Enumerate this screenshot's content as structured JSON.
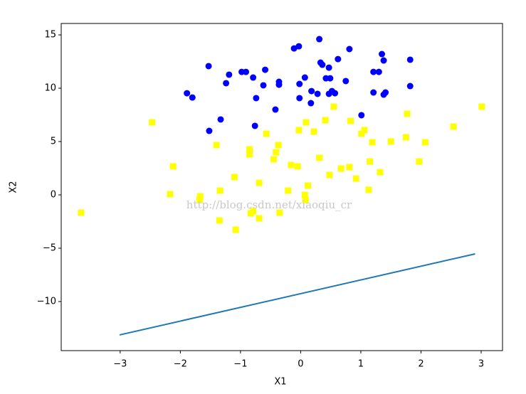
{
  "chart_data": {
    "type": "scatter",
    "xlabel": "X1",
    "ylabel": "X2",
    "annotation": "http://blog.csdn.net/xiaoqiu_cr",
    "xlim": [
      -3.98,
      3.355
    ],
    "ylim": [
      -14.6,
      16.07
    ],
    "xticks": [
      {
        "value": -3,
        "label": "−3"
      },
      {
        "value": -2,
        "label": "−2"
      },
      {
        "value": -1,
        "label": "−1"
      },
      0,
      1,
      2,
      3
    ],
    "yticks": [
      {
        "value": -10,
        "label": "−10"
      },
      {
        "value": -5,
        "label": "−5"
      },
      0,
      5,
      10,
      15
    ],
    "series": [
      {
        "kind": "scatter",
        "marker": "circle",
        "color": "#0000ff",
        "x": [
          -1.53,
          -1.19,
          -1.24,
          -0.98,
          -0.91,
          -0.79,
          -0.59,
          -0.62,
          -0.74,
          -0.36,
          -0.36,
          -0.42,
          -1.89,
          -1.8,
          -1.33,
          -1.52,
          -0.76,
          -0.11,
          -0.03,
          0.31,
          -0.02,
          0.07,
          -0.02,
          0.18,
          0.28,
          0.17,
          0.33,
          0.36,
          0.47,
          0.42,
          0.49,
          0.47,
          0.52,
          0.57,
          0.62,
          0.81,
          0.75,
          1.01,
          1.21,
          1.3,
          1.21,
          1.35,
          1.38,
          1.38,
          1.41,
          1.82,
          1.82
        ],
        "values": [
          12.07,
          11.27,
          10.47,
          11.53,
          11.53,
          11.0,
          11.73,
          10.27,
          9.07,
          10.6,
          10.33,
          8.0,
          9.53,
          9.13,
          7.07,
          6.0,
          6.47,
          13.73,
          13.93,
          14.6,
          10.4,
          11.0,
          9.07,
          9.73,
          9.47,
          8.6,
          12.4,
          12.2,
          11.93,
          10.93,
          10.93,
          9.47,
          9.73,
          9.53,
          12.73,
          13.67,
          10.67,
          7.47,
          11.53,
          11.53,
          9.6,
          13.2,
          12.6,
          9.4,
          9.6,
          12.67,
          10.2
        ]
      },
      {
        "kind": "scatter",
        "marker": "square",
        "color": "#ffff00",
        "x": [
          -3.65,
          -2.47,
          -2.12,
          -2.17,
          -1.67,
          -1.68,
          -1.4,
          -1.34,
          -1.35,
          -1.1,
          -1.08,
          -0.85,
          -0.85,
          -0.83,
          -0.79,
          -0.69,
          -0.69,
          -0.57,
          -0.45,
          -0.41,
          -0.37,
          -0.35,
          -0.21,
          -0.16,
          -0.05,
          -0.03,
          0.09,
          0.07,
          0.08,
          0.12,
          0.22,
          0.31,
          0.41,
          0.48,
          0.55,
          0.67,
          0.81,
          0.83,
          0.92,
          1.01,
          1.06,
          1.13,
          1.15,
          1.19,
          1.32,
          1.5,
          1.75,
          1.77,
          1.97,
          2.07,
          2.54,
          3.01
        ],
        "values": [
          -1.67,
          6.8,
          2.67,
          0.07,
          -0.13,
          -0.47,
          4.67,
          0.4,
          -2.4,
          1.67,
          -3.27,
          4.27,
          3.8,
          -1.73,
          -1.53,
          1.13,
          -2.2,
          5.73,
          3.33,
          4.0,
          4.67,
          -1.67,
          0.4,
          2.8,
          2.67,
          6.07,
          6.8,
          0,
          -0.47,
          0.87,
          5.93,
          3.47,
          7.0,
          1.87,
          8.27,
          2.47,
          2.6,
          6.93,
          1.53,
          5.73,
          6.07,
          0.47,
          3.13,
          4.93,
          2.13,
          5.0,
          5.4,
          7.6,
          3.13,
          4.93,
          6.4,
          8.27
        ]
      },
      {
        "kind": "line",
        "color": "#1f77b4",
        "x": [
          -3.01,
          2.9
        ],
        "values": [
          -13.13,
          -5.53
        ]
      }
    ]
  }
}
